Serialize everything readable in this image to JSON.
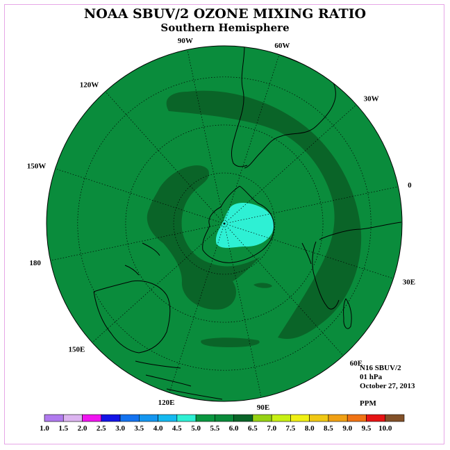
{
  "header": {
    "title": "NOAA SBUV/2 OZONE MIXING RATIO",
    "subtitle": "Southern Hemisphere"
  },
  "info": {
    "instrument": "N16 SBUV/2",
    "level": "01 hPa",
    "date": "October 27, 2013",
    "units": "PPM"
  },
  "longitude_labels": [
    "90W",
    "60W",
    "30W",
    "0",
    "30E",
    "60E",
    "90E",
    "120E",
    "150E",
    "180",
    "150W",
    "120W"
  ],
  "colorbar": {
    "ticks": [
      "1.0",
      "1.5",
      "2.0",
      "2.5",
      "3.0",
      "3.5",
      "4.0",
      "4.5",
      "5.0",
      "5.5",
      "6.0",
      "6.5",
      "7.0",
      "7.5",
      "8.0",
      "8.5",
      "9.0",
      "9.5",
      "10.0"
    ],
    "colors": [
      "#b07aee",
      "#dcb4f0",
      "#f014f0",
      "#1414e6",
      "#1473f0",
      "#1496f0",
      "#14b9f0",
      "#2ef0d4",
      "#0a9640",
      "#0a8a3a",
      "#0a6428",
      "#96d214",
      "#c8f014",
      "#f0f014",
      "#f0c814",
      "#f0a014",
      "#f07314",
      "#e61414",
      "#825028"
    ]
  },
  "map_colors": {
    "background": "#0a8c3c",
    "band": "#0a6428",
    "low": "#2ef0d4"
  }
}
